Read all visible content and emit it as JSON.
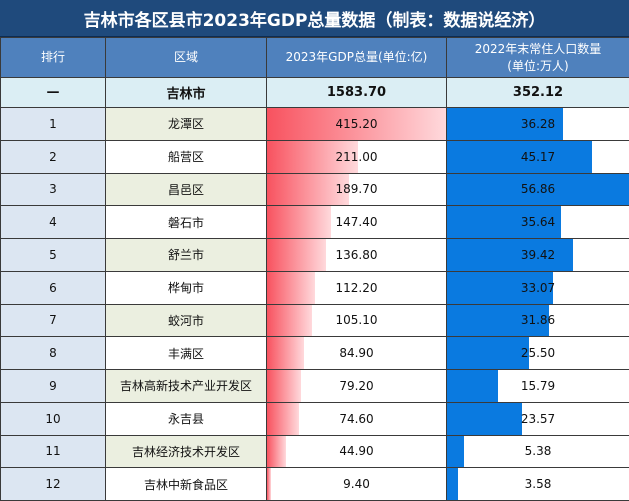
{
  "title": "吉林市各区县市2023年GDP总量数据（制表：数据说经济）",
  "headers": {
    "rank": "排行",
    "region": "区域",
    "gdp": "2023年GDP总量(单位:亿)",
    "pop_line1": "2022年末常住人口数量",
    "pop_line2": "(单位:万人)"
  },
  "city": {
    "rank": "—",
    "region": "吉林市",
    "gdp": "1583.70",
    "pop": "352.12"
  },
  "colors": {
    "title_bg": "#1f4a7c",
    "header_bg": "#4f81bd",
    "gdp_bar": "#f8525f",
    "pop_bar": "#0a7ae0"
  },
  "rows": [
    {
      "rank": "1",
      "region": "龙潭区",
      "gdp": "415.20",
      "pop": "36.28"
    },
    {
      "rank": "2",
      "region": "船营区",
      "gdp": "211.00",
      "pop": "45.17"
    },
    {
      "rank": "3",
      "region": "昌邑区",
      "gdp": "189.70",
      "pop": "56.86"
    },
    {
      "rank": "4",
      "region": "磐石市",
      "gdp": "147.40",
      "pop": "35.64"
    },
    {
      "rank": "5",
      "region": "舒兰市",
      "gdp": "136.80",
      "pop": "39.42"
    },
    {
      "rank": "6",
      "region": "桦甸市",
      "gdp": "112.20",
      "pop": "33.07"
    },
    {
      "rank": "7",
      "region": "蛟河市",
      "gdp": "105.10",
      "pop": "31.86"
    },
    {
      "rank": "8",
      "region": "丰满区",
      "gdp": "84.90",
      "pop": "25.50"
    },
    {
      "rank": "9",
      "region": "吉林高新技术产业开发区",
      "gdp": "79.20",
      "pop": "15.79"
    },
    {
      "rank": "10",
      "region": "永吉县",
      "gdp": "74.60",
      "pop": "23.57"
    },
    {
      "rank": "11",
      "region": "吉林经济技术开发区",
      "gdp": "44.90",
      "pop": "5.38"
    },
    {
      "rank": "12",
      "region": "吉林中新食品区",
      "gdp": "9.40",
      "pop": "3.58"
    }
  ]
}
